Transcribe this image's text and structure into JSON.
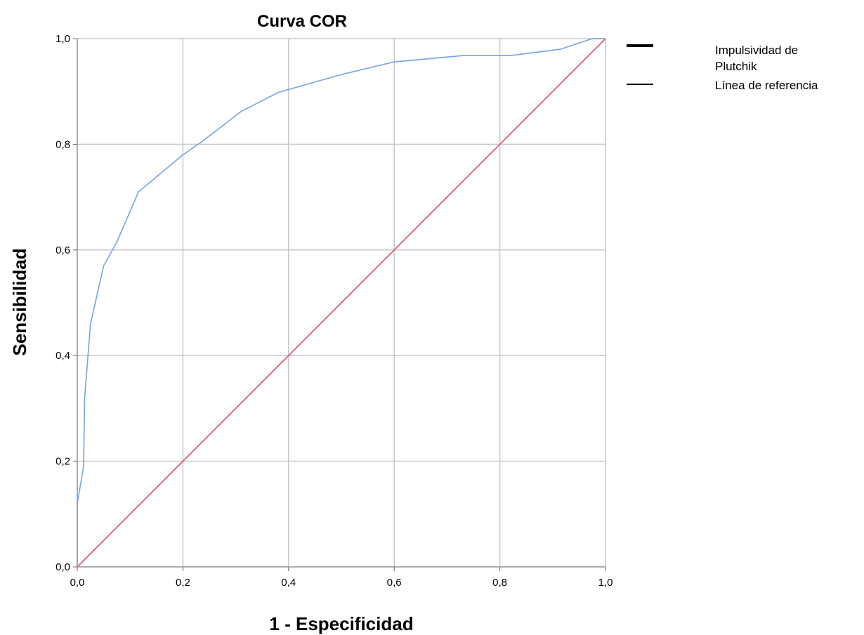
{
  "chart_data": {
    "type": "line",
    "title": "Curva COR",
    "xlabel": "1 - Especificidad",
    "ylabel": "Sensibilidad",
    "xlim": [
      0,
      1
    ],
    "ylim": [
      0,
      1
    ],
    "grid": true,
    "legend_position": "top-right, outside plot",
    "x_tick_labels": [
      "0,0",
      "0,2",
      "0,4",
      "0,6",
      "0,8",
      "1,0"
    ],
    "y_tick_labels": [
      "0,0",
      "0,2",
      "0,4",
      "0,6",
      "0,8",
      "1,0"
    ],
    "series": [
      {
        "name": "Impulsividad de Plutchik",
        "color": "#7ba7e6",
        "legend_line": "thick",
        "x": [
          0,
          0,
          0.012,
          0.014,
          0.025,
          0.05,
          0.075,
          0.116,
          0.2,
          0.236,
          0.31,
          0.38,
          0.5,
          0.6,
          0.73,
          0.82,
          0.915,
          0.975,
          1.0
        ],
        "y": [
          0,
          0.12,
          0.19,
          0.32,
          0.46,
          0.57,
          0.615,
          0.71,
          0.78,
          0.805,
          0.862,
          0.898,
          0.932,
          0.956,
          0.968,
          0.968,
          0.98,
          1.0,
          1.0
        ]
      },
      {
        "name": "Línea de referencia",
        "color": "#e0566e",
        "legend_line": "thin",
        "x": [
          0,
          1
        ],
        "y": [
          0,
          1
        ]
      }
    ],
    "legend_labels": [
      "Impulsividad de",
      "Plutchik",
      "Línea de referencia"
    ]
  }
}
